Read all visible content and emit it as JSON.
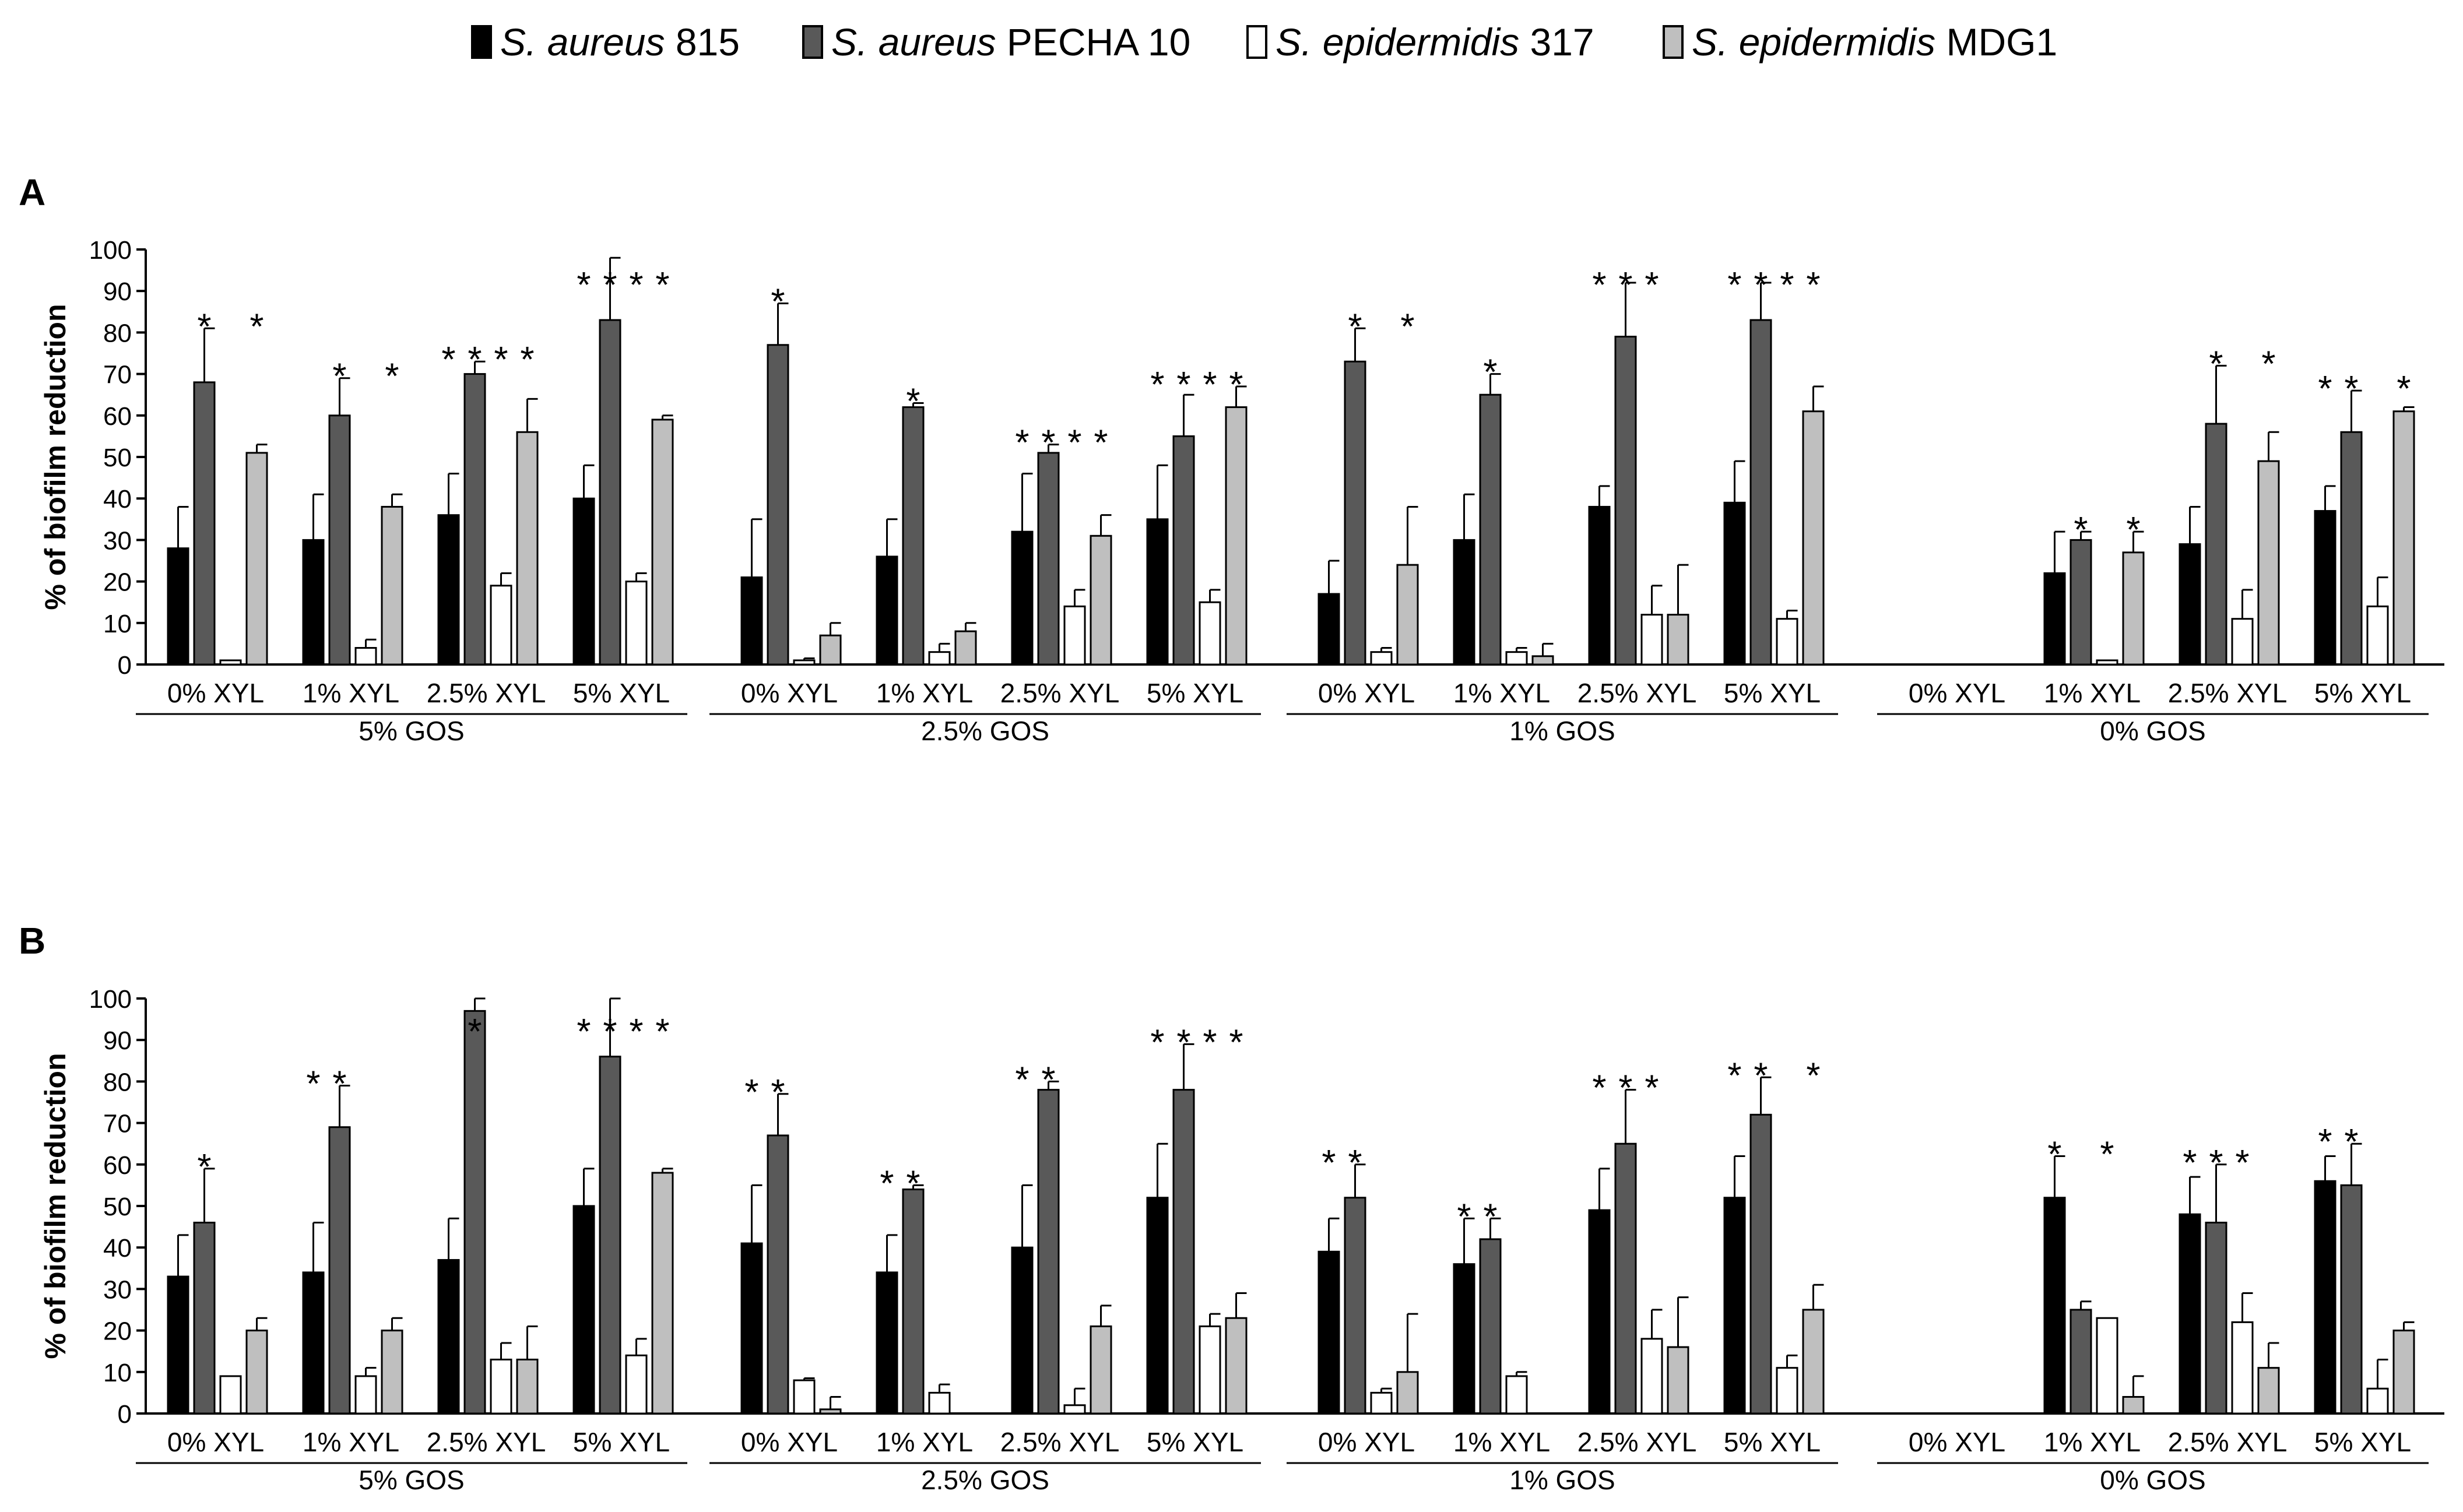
{
  "legend": {
    "items": [
      {
        "italic": "S. aureus",
        "rest": " 815",
        "color": "#000000"
      },
      {
        "italic": "S. aureus",
        "rest": " PECHA 10",
        "color": "#595959"
      },
      {
        "italic": "S. epidermidis",
        "rest": " 317",
        "color": "#ffffff"
      },
      {
        "italic": "S. epidermidis",
        "rest": " MDG1",
        "color": "#bfbfbf"
      }
    ]
  },
  "chart_data": [
    {
      "type": "bar",
      "panel_label": "A",
      "ylabel": "% of biofilm reduction",
      "ylim": [
        0,
        100
      ],
      "yticks": [
        0,
        10,
        20,
        30,
        40,
        50,
        60,
        70,
        80,
        90,
        100
      ],
      "gos_groups": [
        "5% GOS",
        "2.5% GOS",
        "1% GOS",
        "0% GOS"
      ],
      "xyl_labels": [
        "0% XYL",
        "1% XYL",
        "2.5% XYL",
        "5% XYL"
      ],
      "series": [
        {
          "name": "S. aureus 815",
          "color": "#000000",
          "values": [
            28,
            30,
            36,
            40,
            21,
            26,
            32,
            35,
            17,
            30,
            38,
            39,
            0,
            22,
            29,
            37
          ],
          "errors": [
            10,
            11,
            10,
            8,
            14,
            9,
            14,
            13,
            8,
            11,
            5,
            10,
            0,
            10,
            9,
            6
          ]
        },
        {
          "name": "S. aureus PECHA 10",
          "color": "#595959",
          "values": [
            68,
            60,
            70,
            83,
            77,
            62,
            51,
            55,
            73,
            65,
            79,
            83,
            0,
            30,
            58,
            56
          ],
          "errors": [
            13,
            9,
            3,
            15,
            10,
            1,
            2,
            10,
            8,
            5,
            13,
            9,
            0,
            2,
            14,
            10
          ]
        },
        {
          "name": "S. epidermidis 317",
          "color": "#ffffff",
          "values": [
            1,
            4,
            19,
            20,
            1,
            3,
            14,
            15,
            3,
            3,
            12,
            11,
            0,
            1,
            11,
            14
          ],
          "errors": [
            0,
            2,
            3,
            2,
            0.5,
            2,
            4,
            3,
            1,
            1,
            7,
            2,
            0,
            0,
            7,
            7
          ]
        },
        {
          "name": "S. epidermidis MDG1",
          "color": "#bfbfbf",
          "values": [
            51,
            38,
            56,
            59,
            7,
            8,
            31,
            62,
            24,
            2,
            12,
            61,
            0,
            27,
            49,
            61
          ],
          "errors": [
            2,
            3,
            8,
            1,
            3,
            2,
            5,
            5,
            14,
            3,
            12,
            6,
            0,
            5,
            7,
            1
          ]
        }
      ],
      "annotations": [
        {
          "bars": [
            1,
            3
          ],
          "text": [
            "*",
            "*"
          ]
        },
        {
          "bars": [
            1,
            3
          ],
          "text": [
            "*",
            "*"
          ]
        },
        {
          "bars": [
            0,
            1,
            2,
            3
          ],
          "text": [
            "*",
            "*",
            "*",
            "*"
          ]
        },
        {
          "bars": [
            0,
            1,
            2,
            3
          ],
          "text": [
            "*",
            "*",
            "*",
            "*"
          ]
        },
        {
          "bars": [
            1
          ],
          "text": [
            "*"
          ]
        },
        {
          "bars": [
            1
          ],
          "text": [
            "*"
          ]
        },
        {
          "bars": [
            0,
            1,
            2,
            3
          ],
          "text": [
            "*",
            "*",
            "*",
            "*"
          ]
        },
        {
          "bars": [
            0,
            1,
            2,
            3
          ],
          "text": [
            "*",
            "*",
            "*",
            "*"
          ]
        },
        {
          "bars": [
            1,
            3
          ],
          "text": [
            "*",
            "*"
          ]
        },
        {
          "bars": [
            1
          ],
          "text": [
            "*"
          ]
        },
        {
          "bars": [
            0,
            1,
            2
          ],
          "text": [
            "*",
            "*",
            "*"
          ]
        },
        {
          "bars": [
            0,
            1,
            2,
            3
          ],
          "text": [
            "*",
            "*",
            "*",
            "*"
          ]
        },
        {
          "bars": [],
          "text": []
        },
        {
          "bars": [
            1,
            3
          ],
          "text": [
            "*",
            "*"
          ]
        },
        {
          "bars": [
            1,
            3
          ],
          "text": [
            "*",
            "*"
          ]
        },
        {
          "bars": [
            0,
            1,
            3
          ],
          "text": [
            "*",
            "*",
            "*"
          ]
        }
      ]
    },
    {
      "type": "bar",
      "panel_label": "B",
      "ylabel": "% of biofilm reduction",
      "ylim": [
        0,
        100
      ],
      "yticks": [
        0,
        10,
        20,
        30,
        40,
        50,
        60,
        70,
        80,
        90,
        100
      ],
      "gos_groups": [
        "5% GOS",
        "2.5% GOS",
        "1% GOS",
        "0% GOS"
      ],
      "xyl_labels": [
        "0% XYL",
        "1% XYL",
        "2.5% XYL",
        "5% XYL"
      ],
      "series": [
        {
          "name": "S. aureus 815",
          "color": "#000000",
          "values": [
            33,
            34,
            37,
            50,
            41,
            34,
            40,
            52,
            39,
            36,
            49,
            52,
            0,
            52,
            48,
            56
          ],
          "errors": [
            10,
            12,
            10,
            9,
            14,
            9,
            15,
            13,
            8,
            11,
            10,
            10,
            0,
            10,
            9,
            6
          ]
        },
        {
          "name": "S. aureus PECHA 10",
          "color": "#595959",
          "values": [
            46,
            69,
            97,
            86,
            67,
            54,
            78,
            78,
            52,
            42,
            65,
            72,
            0,
            25,
            46,
            55
          ],
          "errors": [
            13,
            10,
            3,
            14,
            10,
            1,
            2,
            11,
            8,
            5,
            13,
            9,
            0,
            2,
            14,
            10
          ]
        },
        {
          "name": "S. epidermidis 317",
          "color": "#ffffff",
          "values": [
            9,
            9,
            13,
            14,
            8,
            5,
            2,
            21,
            5,
            9,
            18,
            11,
            0,
            23,
            22,
            6
          ],
          "errors": [
            0,
            2,
            4,
            4,
            0.5,
            2,
            4,
            3,
            1,
            1,
            7,
            3,
            0,
            0,
            7,
            7
          ]
        },
        {
          "name": "S. epidermidis MDG1",
          "color": "#bfbfbf",
          "values": [
            20,
            20,
            13,
            58,
            1,
            0,
            21,
            23,
            10,
            0,
            16,
            25,
            0,
            4,
            11,
            20
          ],
          "errors": [
            3,
            3,
            8,
            1,
            3,
            2,
            5,
            6,
            14,
            3,
            12,
            6,
            0,
            5,
            6,
            2
          ]
        }
      ],
      "annotations": [
        {
          "bars": [
            1
          ],
          "text": [
            "*"
          ]
        },
        {
          "bars": [
            0,
            1
          ],
          "text": [
            "*",
            "*"
          ]
        },
        {
          "bars": [
            1
          ],
          "text": [
            "*"
          ]
        },
        {
          "bars": [
            0,
            1,
            2,
            3
          ],
          "text": [
            "*",
            "*",
            "*",
            "*"
          ]
        },
        {
          "bars": [
            0,
            1
          ],
          "text": [
            "*",
            "*"
          ]
        },
        {
          "bars": [
            0,
            1
          ],
          "text": [
            "*",
            "*"
          ]
        },
        {
          "bars": [
            0,
            1
          ],
          "text": [
            "*",
            "*"
          ]
        },
        {
          "bars": [
            0,
            1,
            2,
            3
          ],
          "text": [
            "*",
            "*",
            "*",
            "*"
          ]
        },
        {
          "bars": [
            0,
            1
          ],
          "text": [
            "*",
            "*"
          ]
        },
        {
          "bars": [
            0,
            1
          ],
          "text": [
            "*",
            "*"
          ]
        },
        {
          "bars": [
            0,
            1,
            2
          ],
          "text": [
            "*",
            "*",
            "*"
          ]
        },
        {
          "bars": [
            0,
            1,
            3
          ],
          "text": [
            "*",
            "*",
            "*"
          ]
        },
        {
          "bars": [],
          "text": []
        },
        {
          "bars": [
            0,
            2
          ],
          "text": [
            "*",
            "*"
          ]
        },
        {
          "bars": [
            0,
            1,
            2
          ],
          "text": [
            "*",
            "*",
            "*"
          ]
        },
        {
          "bars": [
            0,
            1
          ],
          "text": [
            "*",
            "*"
          ]
        }
      ]
    }
  ]
}
